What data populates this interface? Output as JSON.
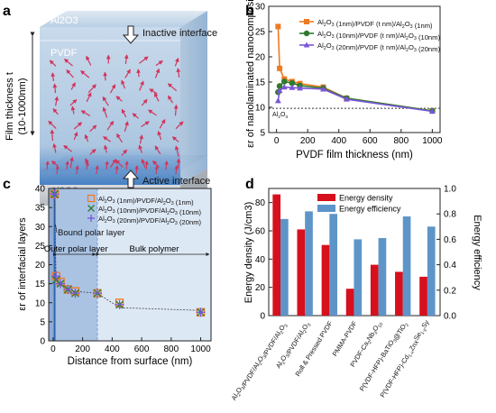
{
  "panel_labels": {
    "a": "a",
    "b": "b",
    "c": "c",
    "d": "d"
  },
  "colors": {
    "orange": "#ee7a22",
    "green": "#2f7a2f",
    "purple": "#7a55d8",
    "navy": "#1b2f7d",
    "red": "#d6101c",
    "blue": "#5e95c8",
    "shade": "#aac3e3",
    "shade_light": "#dde8f5"
  },
  "panel_a": {
    "top_layer": "Al2O3",
    "middle_layer": "PVDF",
    "bottom_layer": "Al2O3",
    "inactive_label": "Inactive interface",
    "active_label": "Active interface",
    "thickness_label": [
      "Film thickness t",
      "(10-1000nm)"
    ]
  },
  "chart_data": [
    {
      "panel": "b",
      "type": "line",
      "xlabel": "PVDF film thickness (nm)",
      "ylabel": "εr of nanolaminated nanocomposite",
      "xlim": [
        -50,
        1050
      ],
      "ylim": [
        5,
        30
      ],
      "xticks": [
        0,
        200,
        400,
        600,
        800,
        1000
      ],
      "yticks": [
        5,
        10,
        15,
        20,
        25,
        30
      ],
      "reference_line": {
        "y": 9.8,
        "label": "Al2O3"
      },
      "legend_position": "top-right",
      "series": [
        {
          "name": "Al2O3 (1nm)/PVDF (t nm)/Al2O3 (1nm)",
          "color": "#ee7a22",
          "marker": "square",
          "x": [
            10,
            20,
            50,
            100,
            150,
            300,
            450,
            1000
          ],
          "y": [
            26.0,
            17.7,
            15.6,
            15.1,
            14.7,
            14.0,
            11.8,
            9.3
          ]
        },
        {
          "name": "Al2O3 (10nm)/PVDF (t nm)/Al2O3 (10nm)",
          "color": "#2f7a2f",
          "marker": "circle",
          "x": [
            10,
            20,
            50,
            100,
            150,
            300,
            450,
            1000
          ],
          "y": [
            13.0,
            14.2,
            15.1,
            14.8,
            14.3,
            13.8,
            11.8,
            9.3
          ]
        },
        {
          "name": "Al2O3 (20nm)/PVDF (t nm)/Al2O3 (20nm)",
          "color": "#7a55d8",
          "marker": "triangle",
          "x": [
            10,
            20,
            50,
            100,
            150,
            300,
            450,
            1000
          ],
          "y": [
            11.3,
            13.3,
            14.0,
            13.9,
            13.8,
            13.6,
            11.6,
            9.2
          ]
        }
      ]
    },
    {
      "panel": "c",
      "type": "scatter",
      "xlabel": "Distance from surface  (nm)",
      "ylabel": "εr of interfacial layers",
      "xlim": [
        -30,
        1070
      ],
      "ylim": [
        0,
        40
      ],
      "xticks": [
        0,
        200,
        400,
        600,
        800,
        1000
      ],
      "yticks": [
        0,
        5,
        10,
        15,
        20,
        25,
        30,
        35,
        40
      ],
      "regions": [
        "Bound polar layer",
        "Outer polar layer",
        "Bulk polymer"
      ],
      "legend_position": "top-right",
      "fit_line": {
        "x": [
          10,
          20,
          50,
          100,
          150,
          300,
          450,
          1000
        ],
        "y": [
          38.5,
          16.0,
          14.8,
          13.5,
          13.0,
          12.5,
          8.7,
          8.0
        ]
      },
      "series": [
        {
          "name": "Al2O3 (1nm)/PVDF/Al2O3 (1nm)",
          "color": "#ee7a22",
          "marker": "open-square",
          "x": [
            10,
            20,
            50,
            100,
            150,
            300,
            450,
            1000
          ],
          "y": [
            38.5,
            17.0,
            15.5,
            13.5,
            13.0,
            12.5,
            10.0,
            7.5
          ]
        },
        {
          "name": "Al2O3 (10nm)/PVDF/Al2O3 (10nm)",
          "color": "#2f7a2f",
          "marker": "x",
          "x": [
            10,
            20,
            50,
            100,
            150,
            300,
            450,
            1000
          ],
          "y": [
            38.5,
            16.0,
            15.0,
            13.5,
            12.5,
            12.5,
            9.5,
            7.5
          ]
        },
        {
          "name": "Al2O3 (20nm)/PVDF/Al2O3 (20nm)",
          "color": "#7a55d8",
          "marker": "plus",
          "x": [
            10,
            20,
            50,
            100,
            150,
            300,
            450,
            1000
          ],
          "y": [
            38.5,
            17.0,
            15.0,
            13.5,
            12.5,
            12.5,
            9.5,
            7.5
          ]
        }
      ]
    },
    {
      "panel": "d",
      "type": "bar",
      "ylabel_left": "Energy density (J/cm3)",
      "ylabel_right": "Energy efficiency",
      "ylim_left": [
        0,
        90
      ],
      "ylim_right": [
        0,
        1.0
      ],
      "yticks_left": [
        0,
        20,
        40,
        60,
        80
      ],
      "yticks_right": [
        0,
        0.2,
        0.4,
        0.6,
        0.8,
        1.0
      ],
      "legend_position": "top-right",
      "categories": [
        "Al2O3/PVDF/Al2O3/PVDF/Al2O3",
        "Al2O3/PVDF/Al2O3",
        "Roll & Pressed PVDF",
        "PMMA-PVDF",
        "PVDF-Ca2Nb3O10",
        "P(VDF-HFP)-BaTiO3@TiO2",
        "P(VDF-HFP)-Cd1-xZnxSe1-ySy"
      ],
      "series": [
        {
          "name": "Energy density",
          "color": "#d6101c",
          "axis": "left",
          "values": [
            85.8,
            61,
            50,
            19,
            36,
            31,
            27.5
          ]
        },
        {
          "name": "Energy efficiency",
          "color": "#5e95c8",
          "axis": "right",
          "values": [
            0.76,
            0.82,
            0.8,
            0.6,
            0.61,
            0.78,
            0.7
          ]
        }
      ]
    }
  ]
}
